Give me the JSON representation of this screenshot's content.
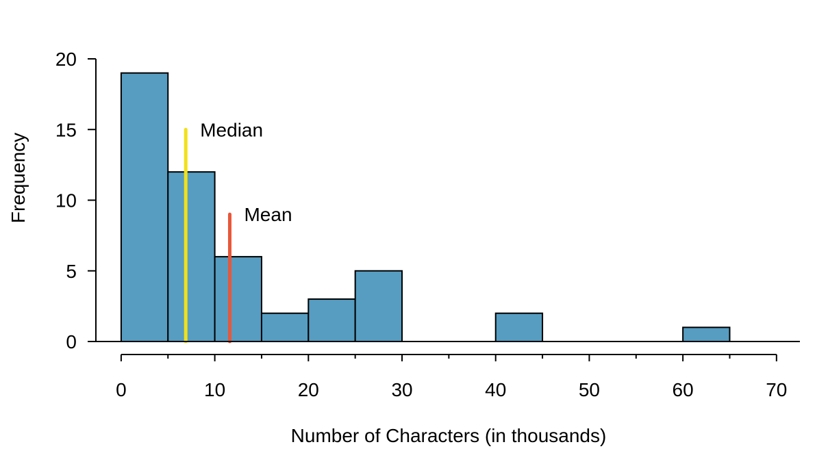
{
  "chart_data": {
    "type": "bar",
    "subtype": "histogram",
    "xlabel": "Number of Characters (in thousands)",
    "ylabel": "Frequency",
    "bin_width": 5,
    "bins": [
      {
        "start": 0,
        "end": 5,
        "count": 19
      },
      {
        "start": 5,
        "end": 10,
        "count": 12
      },
      {
        "start": 10,
        "end": 15,
        "count": 6
      },
      {
        "start": 15,
        "end": 20,
        "count": 2
      },
      {
        "start": 20,
        "end": 25,
        "count": 3
      },
      {
        "start": 25,
        "end": 30,
        "count": 5
      },
      {
        "start": 30,
        "end": 35,
        "count": 0
      },
      {
        "start": 35,
        "end": 40,
        "count": 0
      },
      {
        "start": 40,
        "end": 45,
        "count": 2
      },
      {
        "start": 45,
        "end": 50,
        "count": 0
      },
      {
        "start": 50,
        "end": 55,
        "count": 0
      },
      {
        "start": 55,
        "end": 60,
        "count": 0
      },
      {
        "start": 60,
        "end": 65,
        "count": 1
      }
    ],
    "xlim": [
      -2.7,
      72.5
    ],
    "ylim": [
      0,
      20
    ],
    "x_ticks": [
      0,
      10,
      20,
      30,
      40,
      50,
      60,
      70
    ],
    "x_minor_ticks": [
      5,
      15,
      25,
      35,
      45,
      55,
      65
    ],
    "y_ticks": [
      0,
      5,
      10,
      15,
      20
    ],
    "grid": false,
    "bar_color": "#569dc1",
    "annotations": [
      {
        "label": "Median",
        "x": 6.9,
        "y_top": 15,
        "color": "#f2e01a"
      },
      {
        "label": "Mean",
        "x": 11.6,
        "y_top": 9,
        "color": "#e8573a"
      }
    ]
  }
}
